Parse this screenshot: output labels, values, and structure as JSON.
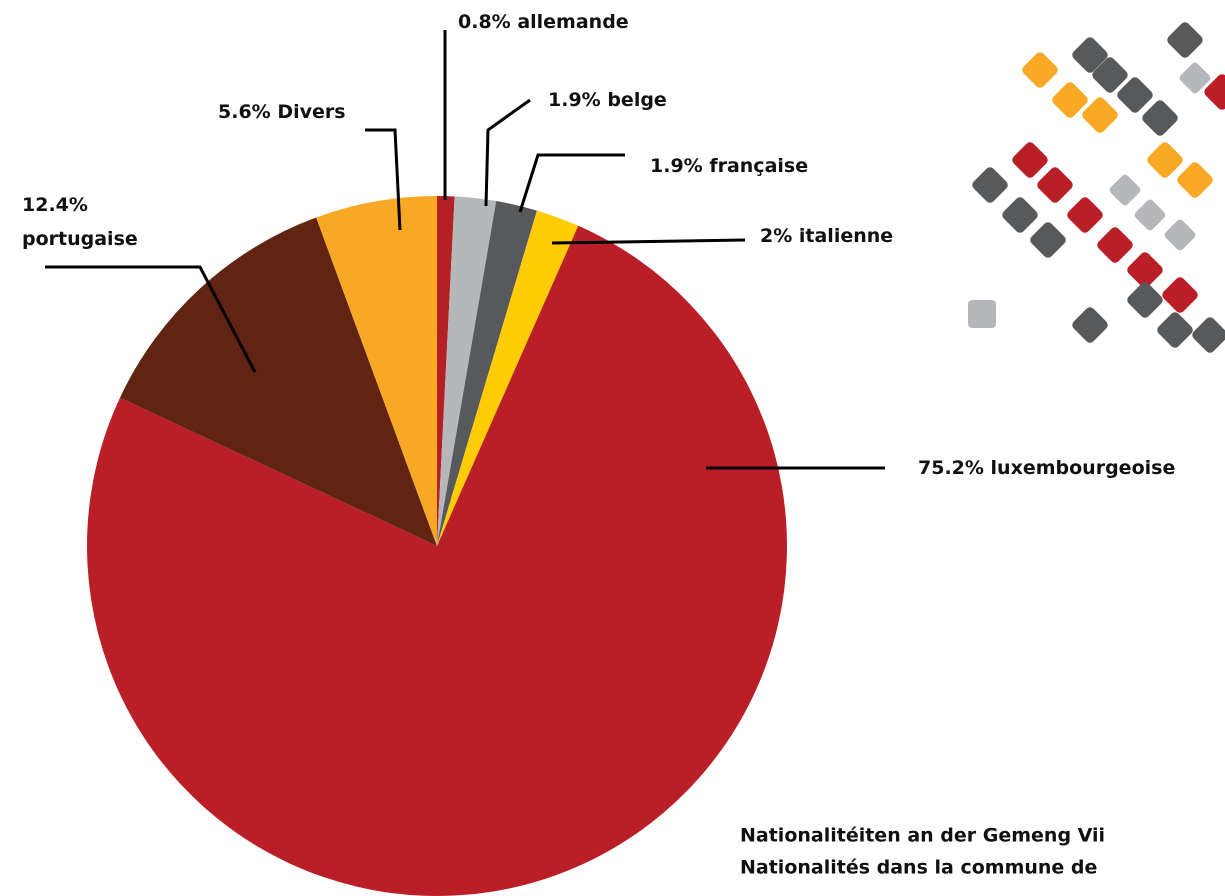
{
  "chart_data": {
    "type": "pie",
    "categories": [
      "allemande",
      "belge",
      "française",
      "italienne",
      "luxembourgeoise",
      "portugaise",
      "Divers"
    ],
    "values": [
      0.8,
      1.9,
      1.9,
      2,
      75.2,
      12.4,
      5.6
    ],
    "value_labels": [
      "0.8%",
      "1.9%",
      "1.9%",
      "2%",
      "75.2%",
      "12.4%",
      "5.6%"
    ],
    "colors": [
      "#b52025",
      "#b6b7ba",
      "#58595b",
      "#ffcc05",
      "#ba1f28",
      "#622412",
      "#f9a825"
    ],
    "subtitle_lines": [
      "Nationalitéiten an der Gemeng Vii",
      "Nationalités dans la commune de"
    ]
  }
}
